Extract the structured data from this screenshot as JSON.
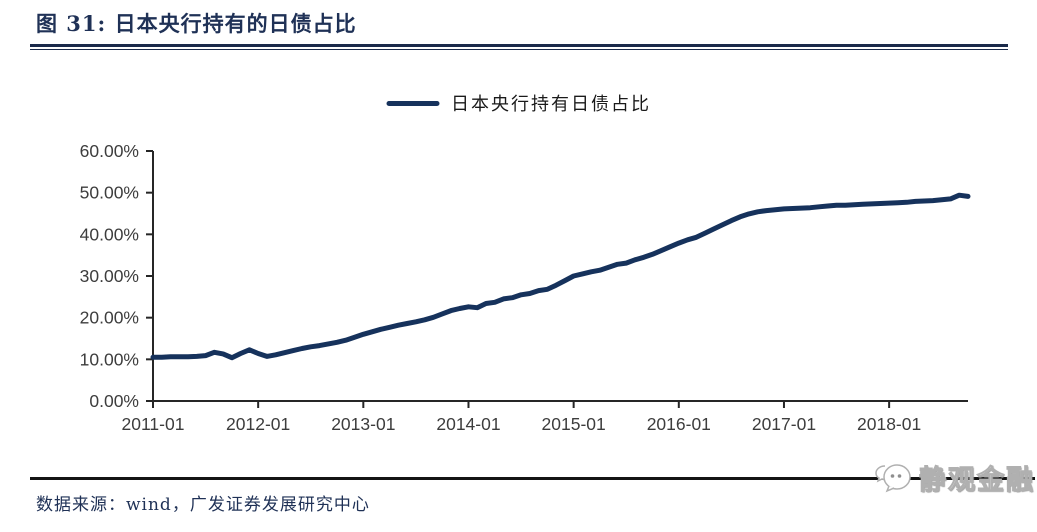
{
  "header": {
    "title": "图 31:  日本央行持有的日债占比"
  },
  "legend": {
    "label": "日本央行持有日债占比"
  },
  "footer": {
    "source": "数据来源：wind，广发证券发展研究中心",
    "watermark": "静观金融",
    "watermark_icon": "wechat-chat-bubbles-icon"
  },
  "colors": {
    "line": "#16325c",
    "title": "#1f3156",
    "axis": "#262626",
    "tick_label": "#3d3d3d",
    "rule": "#141414"
  },
  "chart_data": {
    "type": "line",
    "title": "日本央行持有的日债占比",
    "xlabel": "",
    "ylabel": "",
    "ylim": [
      0,
      60
    ],
    "grid": false,
    "legend_position": "top-center",
    "y_ticks": [
      {
        "label": "0.00%",
        "value": 0
      },
      {
        "label": "10.00%",
        "value": 10
      },
      {
        "label": "20.00%",
        "value": 20
      },
      {
        "label": "30.00%",
        "value": 30
      },
      {
        "label": "40.00%",
        "value": 40
      },
      {
        "label": "50.00%",
        "value": 50
      },
      {
        "label": "60.00%",
        "value": 60
      }
    ],
    "x_ticks": [
      {
        "label": "2011-01",
        "month_index": 0
      },
      {
        "label": "2012-01",
        "month_index": 12
      },
      {
        "label": "2013-01",
        "month_index": 24
      },
      {
        "label": "2014-01",
        "month_index": 36
      },
      {
        "label": "2015-01",
        "month_index": 48
      },
      {
        "label": "2016-01",
        "month_index": 60
      },
      {
        "label": "2017-01",
        "month_index": 72
      },
      {
        "label": "2018-01",
        "month_index": 84
      }
    ],
    "series": [
      {
        "name": "日本央行持有日债占比",
        "color": "#16325c",
        "x": [
          "2011-01",
          "2011-02",
          "2011-03",
          "2011-04",
          "2011-05",
          "2011-06",
          "2011-07",
          "2011-08",
          "2011-09",
          "2011-10",
          "2011-11",
          "2011-12",
          "2012-01",
          "2012-02",
          "2012-03",
          "2012-04",
          "2012-05",
          "2012-06",
          "2012-07",
          "2012-08",
          "2012-09",
          "2012-10",
          "2012-11",
          "2012-12",
          "2013-01",
          "2013-02",
          "2013-03",
          "2013-04",
          "2013-05",
          "2013-06",
          "2013-07",
          "2013-08",
          "2013-09",
          "2013-10",
          "2013-11",
          "2013-12",
          "2014-01",
          "2014-02",
          "2014-03",
          "2014-04",
          "2014-05",
          "2014-06",
          "2014-07",
          "2014-08",
          "2014-09",
          "2014-10",
          "2014-11",
          "2014-12",
          "2015-01",
          "2015-02",
          "2015-03",
          "2015-04",
          "2015-05",
          "2015-06",
          "2015-07",
          "2015-08",
          "2015-09",
          "2015-10",
          "2015-11",
          "2015-12",
          "2016-01",
          "2016-02",
          "2016-03",
          "2016-04",
          "2016-05",
          "2016-06",
          "2016-07",
          "2016-08",
          "2016-09",
          "2016-10",
          "2016-11",
          "2016-12",
          "2017-01",
          "2017-02",
          "2017-03",
          "2017-04",
          "2017-05",
          "2017-06",
          "2017-07",
          "2017-08",
          "2017-09",
          "2017-10",
          "2017-11",
          "2017-12",
          "2018-01",
          "2018-02",
          "2018-03",
          "2018-04",
          "2018-05",
          "2018-06",
          "2018-07",
          "2018-08",
          "2018-09",
          "2018-10"
        ],
        "values": [
          10.5,
          10.5,
          10.6,
          10.6,
          10.6,
          10.7,
          10.9,
          11.7,
          11.3,
          10.4,
          11.4,
          12.3,
          11.4,
          10.7,
          11.1,
          11.6,
          12.1,
          12.6,
          13.0,
          13.3,
          13.7,
          14.1,
          14.6,
          15.3,
          16.0,
          16.6,
          17.2,
          17.7,
          18.2,
          18.6,
          19.0,
          19.5,
          20.1,
          20.9,
          21.7,
          22.2,
          22.6,
          22.4,
          23.4,
          23.7,
          24.5,
          24.8,
          25.5,
          25.8,
          26.5,
          26.8,
          27.8,
          28.9,
          30.0,
          30.5,
          31.0,
          31.4,
          32.1,
          32.8,
          33.1,
          33.9,
          34.5,
          35.2,
          36.1,
          37.0,
          37.9,
          38.7,
          39.3,
          40.3,
          41.3,
          42.3,
          43.3,
          44.2,
          44.9,
          45.4,
          45.7,
          45.9,
          46.1,
          46.2,
          46.3,
          46.4,
          46.6,
          46.8,
          47.0,
          47.0,
          47.1,
          47.2,
          47.3,
          47.4,
          47.5,
          47.6,
          47.7,
          47.9,
          48.0,
          48.1,
          48.3,
          48.5,
          49.4,
          49.1
        ]
      }
    ]
  }
}
